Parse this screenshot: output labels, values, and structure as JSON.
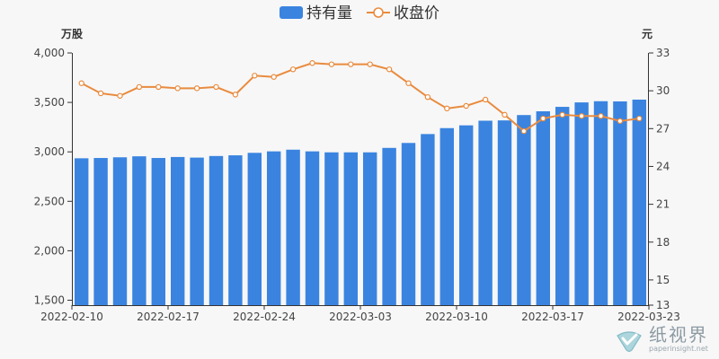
{
  "legend": {
    "bar_label": "持有量",
    "line_label": "收盘价"
  },
  "axis": {
    "left_unit": "万股",
    "right_unit": "元"
  },
  "colors": {
    "bar": "#3a84e0",
    "line": "#e98b3e",
    "axis": "#333333",
    "grid": "#e0e0e0"
  },
  "watermark": {
    "cn": "纸视界",
    "en": "paperinsight.net"
  },
  "chart_data": {
    "type": "bar",
    "categories": [
      "2022-02-10",
      "2022-02-11",
      "2022-02-14",
      "2022-02-15",
      "2022-02-16",
      "2022-02-17",
      "2022-02-18",
      "2022-02-21",
      "2022-02-22",
      "2022-02-23",
      "2022-02-24",
      "2022-02-25",
      "2022-02-28",
      "2022-03-01",
      "2022-03-02",
      "2022-03-03",
      "2022-03-04",
      "2022-03-07",
      "2022-03-08",
      "2022-03-09",
      "2022-03-10",
      "2022-03-11",
      "2022-03-14",
      "2022-03-15",
      "2022-03-16",
      "2022-03-17",
      "2022-03-18",
      "2022-03-21",
      "2022-03-22",
      "2022-03-23"
    ],
    "x_tick_labels": [
      "2022-02-10",
      "2022-02-17",
      "2022-02-24",
      "2022-03-03",
      "2022-03-10",
      "2022-03-17",
      "2022-03-23"
    ],
    "x_tick_indices": [
      0,
      5,
      10,
      15,
      20,
      25,
      29
    ],
    "series": [
      {
        "name": "持有量",
        "type": "bar",
        "axis": "left",
        "values": [
          2935,
          2938,
          2945,
          2955,
          2938,
          2948,
          2942,
          2958,
          2965,
          2990,
          3005,
          3022,
          3005,
          2995,
          2995,
          2995,
          3040,
          3090,
          3180,
          3240,
          3268,
          3315,
          3318,
          3372,
          3410,
          3455,
          3500,
          3512,
          3510,
          3528
        ]
      },
      {
        "name": "收盘价",
        "type": "line",
        "axis": "right",
        "values": [
          30.6,
          29.8,
          29.6,
          30.3,
          30.3,
          30.2,
          30.2,
          30.3,
          29.7,
          31.2,
          31.1,
          31.7,
          32.2,
          32.1,
          32.1,
          32.1,
          31.7,
          30.6,
          29.5,
          28.6,
          28.8,
          29.3,
          28.1,
          26.8,
          27.8,
          28.1,
          28.0,
          28.0,
          27.6,
          27.8
        ]
      }
    ],
    "y_left": {
      "min": 1450,
      "max": 4000,
      "ticks": [
        1500,
        2000,
        2500,
        3000,
        3500,
        4000
      ],
      "tick_labels": [
        "1,500",
        "2,000",
        "2,500",
        "3,000",
        "3,500",
        "4,000"
      ]
    },
    "y_right": {
      "min": 13,
      "max": 33,
      "ticks": [
        13,
        15,
        18,
        21,
        24,
        27,
        30,
        33
      ],
      "tick_labels": [
        "13",
        "15",
        "18",
        "21",
        "24",
        "27",
        "30",
        "33"
      ]
    },
    "legend_position": "top-center",
    "grid": false
  }
}
